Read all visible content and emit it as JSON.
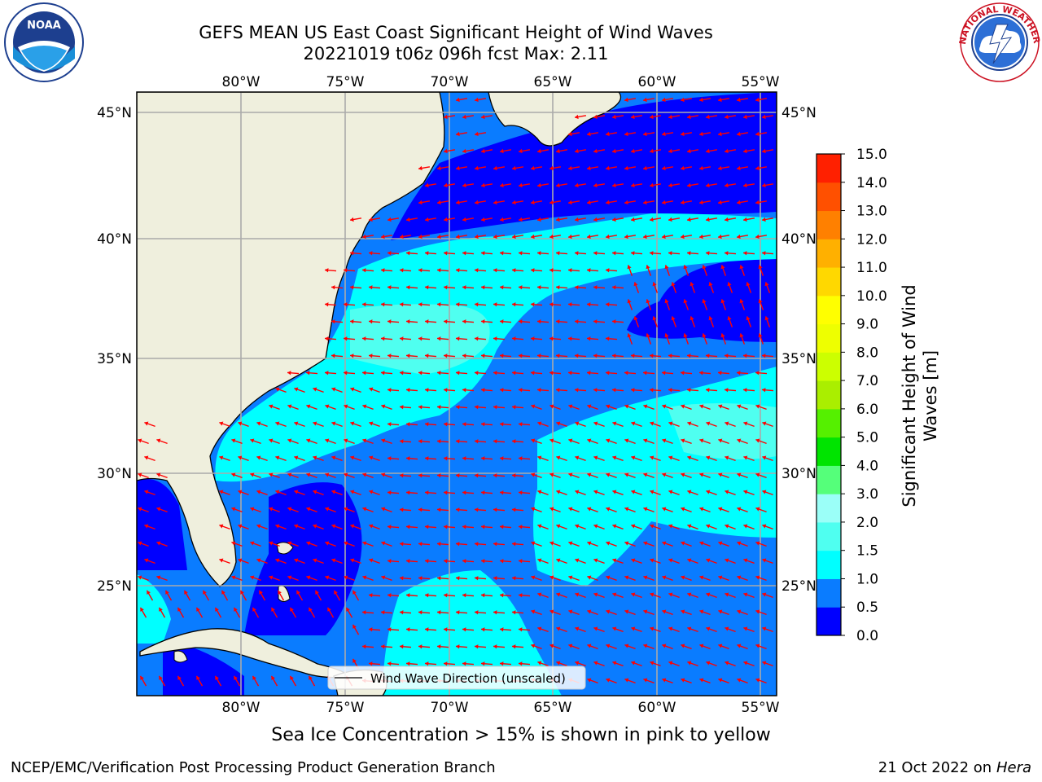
{
  "title": {
    "line1": "GEFS MEAN US East Coast Significant Height of Wind Waves",
    "line2": "20221019 t06z 096h fcst   Max: 2.11"
  },
  "chart_data": {
    "type": "heatmap",
    "variable": "Significant Height of Wind Waves [m]",
    "run": "20221019 t06z",
    "forecast_hour": "096h",
    "max_value": 2.11,
    "longitude_ticks": [
      "80°W",
      "75°W",
      "70°W",
      "65°W",
      "60°W",
      "55°W"
    ],
    "latitude_ticks": [
      "45°N",
      "40°N",
      "35°N",
      "30°N",
      "25°N"
    ],
    "lon_range": [
      -85,
      -54.2
    ],
    "lat_range": [
      20.4,
      45.8
    ],
    "grid": true,
    "colorbar": {
      "label": "Significant Height of Wind Waves [m]",
      "ticks": [
        "0.0",
        "0.5",
        "1.0",
        "1.5",
        "2.0",
        "3.0",
        "4.0",
        "5.0",
        "6.0",
        "7.0",
        "8.0",
        "9.0",
        "10.0",
        "11.0",
        "12.0",
        "13.0",
        "14.0",
        "15.0"
      ],
      "colors": [
        "#0000ff",
        "#0a7cff",
        "#00ffff",
        "#4ffff0",
        "#9bfff8",
        "#55ff7a",
        "#00e400",
        "#55f000",
        "#aaee00",
        "#ccff00",
        "#eeff00",
        "#ffff00",
        "#ffd800",
        "#ffb000",
        "#ff8000",
        "#ff5000",
        "#ff2000"
      ]
    },
    "legend": {
      "entry": "Wind Wave Direction (unscaled)",
      "placement": "bottom-center"
    },
    "arrow_color": "#ff0000",
    "land_color": "#efefdd"
  },
  "footer": {
    "note": "Sea Ice Concentration > 15% is shown in pink to yellow",
    "credit": "NCEP/EMC/Verification Post Processing Product Generation Branch",
    "date": "21 Oct 2022 on",
    "machine": "Hera"
  },
  "logos": {
    "left_text": "NOAA",
    "right_text": "NATIONAL WEATHER SERVICE"
  }
}
